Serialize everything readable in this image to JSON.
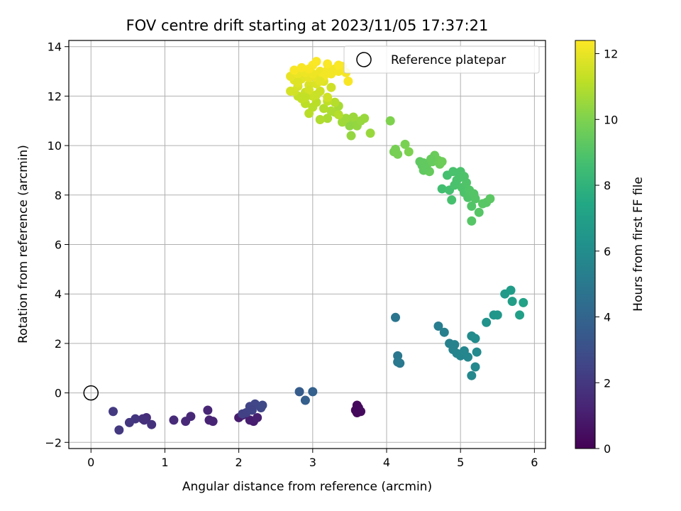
{
  "chart_data": {
    "type": "scatter",
    "title": "FOV centre drift starting at 2023/11/05 17:37:21",
    "xlabel": "Angular distance from reference (arcmin)",
    "ylabel": "Rotation from reference (arcmin)",
    "xlim": [
      -0.3,
      6.15
    ],
    "ylim": [
      -2.25,
      14.25
    ],
    "xticks": [
      0,
      1,
      2,
      3,
      4,
      5,
      6
    ],
    "yticks": [
      -2,
      0,
      2,
      4,
      6,
      8,
      10,
      12,
      14
    ],
    "grid": true,
    "legend": {
      "label": "Reference platepar",
      "placement": "top-right",
      "marker": "hollow-circle"
    },
    "reference_point": {
      "x": 0,
      "y": 0
    },
    "colorbar": {
      "label": "Hours from first FF file",
      "range": [
        0,
        12.4
      ],
      "ticks": [
        0,
        2,
        4,
        6,
        8,
        10,
        12
      ],
      "colormap": "viridis"
    },
    "series": [
      {
        "points": [
          [
            3.6,
            -0.5,
            0.3
          ],
          [
            3.62,
            -0.6,
            0.3
          ],
          [
            3.58,
            -0.7,
            0.3
          ],
          [
            3.65,
            -0.75,
            0.35
          ],
          [
            3.6,
            -0.8,
            0.3
          ],
          [
            2.05,
            -0.9,
            1.0
          ],
          [
            2.15,
            -1.1,
            1.05
          ],
          [
            2.2,
            -1.15,
            1.0
          ],
          [
            2.25,
            -1.0,
            1.1
          ],
          [
            2.0,
            -1.0,
            1.0
          ],
          [
            1.6,
            -1.1,
            1.2
          ],
          [
            1.65,
            -1.15,
            1.25
          ],
          [
            1.58,
            -0.7,
            1.3
          ],
          [
            1.35,
            -0.95,
            1.4
          ],
          [
            1.28,
            -1.15,
            1.45
          ],
          [
            1.12,
            -1.1,
            1.5
          ],
          [
            0.75,
            -1.0,
            1.6
          ],
          [
            0.7,
            -1.05,
            1.65
          ],
          [
            0.72,
            -1.1,
            1.7
          ],
          [
            0.82,
            -1.28,
            1.8
          ],
          [
            0.6,
            -1.05,
            1.9
          ],
          [
            0.52,
            -1.2,
            1.95
          ],
          [
            0.38,
            -1.5,
            2.0
          ],
          [
            0.3,
            -0.75,
            2.1
          ],
          [
            2.1,
            -0.8,
            2.4
          ],
          [
            2.15,
            -0.55,
            2.5
          ],
          [
            2.22,
            -0.45,
            2.55
          ],
          [
            2.3,
            -0.6,
            2.6
          ],
          [
            2.32,
            -0.5,
            2.7
          ],
          [
            2.18,
            -0.7,
            2.45
          ],
          [
            2.05,
            -0.85,
            2.35
          ],
          [
            2.82,
            0.05,
            3.6
          ],
          [
            2.9,
            -0.3,
            3.7
          ],
          [
            3.0,
            0.05,
            3.8
          ],
          [
            4.12,
            3.05,
            4.8
          ],
          [
            4.15,
            1.5,
            4.9
          ],
          [
            4.18,
            1.2,
            4.95
          ],
          [
            4.15,
            1.25,
            5.0
          ],
          [
            4.7,
            2.7,
            5.2
          ],
          [
            4.78,
            2.45,
            5.3
          ],
          [
            4.85,
            2.0,
            5.4
          ],
          [
            4.9,
            1.75,
            5.5
          ],
          [
            4.95,
            1.6,
            5.55
          ],
          [
            5.0,
            1.5,
            5.6
          ],
          [
            5.05,
            1.7,
            5.65
          ],
          [
            5.1,
            1.45,
            5.7
          ],
          [
            5.15,
            0.7,
            5.75
          ],
          [
            5.2,
            1.05,
            5.8
          ],
          [
            5.22,
            1.65,
            5.85
          ],
          [
            5.15,
            2.3,
            5.9
          ],
          [
            5.2,
            2.2,
            5.95
          ],
          [
            4.92,
            1.95,
            5.5
          ],
          [
            5.35,
            2.85,
            6.3
          ],
          [
            5.45,
            3.15,
            6.4
          ],
          [
            5.5,
            3.15,
            6.5
          ],
          [
            5.6,
            4.0,
            6.7
          ],
          [
            5.68,
            4.15,
            6.8
          ],
          [
            5.7,
            3.7,
            6.9
          ],
          [
            5.8,
            3.15,
            7.0
          ],
          [
            5.85,
            3.65,
            7.1
          ],
          [
            4.75,
            8.25,
            8.6
          ],
          [
            4.82,
            8.8,
            8.7
          ],
          [
            4.85,
            8.2,
            8.7
          ],
          [
            4.88,
            7.8,
            8.75
          ],
          [
            4.92,
            8.4,
            8.8
          ],
          [
            4.95,
            8.6,
            8.8
          ],
          [
            5.0,
            8.95,
            8.85
          ],
          [
            5.02,
            8.3,
            8.9
          ],
          [
            5.05,
            8.1,
            8.9
          ],
          [
            5.08,
            8.5,
            8.95
          ],
          [
            5.1,
            7.9,
            8.95
          ],
          [
            5.12,
            8.2,
            9.0
          ],
          [
            5.15,
            7.55,
            9.0
          ],
          [
            5.18,
            8.05,
            9.05
          ],
          [
            5.2,
            7.85,
            9.05
          ],
          [
            5.15,
            6.95,
            9.1
          ],
          [
            5.25,
            7.3,
            9.1
          ],
          [
            5.3,
            7.65,
            9.15
          ],
          [
            5.35,
            7.7,
            9.15
          ],
          [
            5.4,
            7.85,
            9.2
          ],
          [
            4.98,
            8.7,
            8.85
          ],
          [
            4.9,
            8.95,
            8.8
          ],
          [
            5.05,
            8.75,
            8.9
          ],
          [
            4.45,
            9.35,
            9.3
          ],
          [
            4.48,
            9.2,
            9.3
          ],
          [
            4.5,
            9.0,
            9.35
          ],
          [
            4.55,
            9.25,
            9.4
          ],
          [
            4.58,
            8.95,
            9.45
          ],
          [
            4.62,
            9.35,
            9.5
          ],
          [
            4.65,
            9.6,
            9.55
          ],
          [
            4.7,
            9.4,
            9.6
          ],
          [
            4.72,
            9.25,
            9.6
          ],
          [
            4.75,
            9.35,
            9.65
          ],
          [
            4.5,
            9.3,
            9.35
          ],
          [
            4.52,
            9.1,
            9.35
          ],
          [
            4.6,
            9.45,
            9.45
          ],
          [
            4.1,
            9.75,
            9.8
          ],
          [
            4.15,
            9.65,
            9.85
          ],
          [
            4.12,
            9.85,
            9.85
          ],
          [
            4.25,
            10.05,
            9.9
          ],
          [
            4.3,
            9.75,
            9.95
          ],
          [
            4.05,
            11.0,
            10.0
          ],
          [
            3.5,
            10.8,
            10.3
          ],
          [
            3.55,
            11.0,
            10.35
          ],
          [
            3.52,
            10.4,
            10.4
          ],
          [
            3.6,
            10.8,
            10.4
          ],
          [
            3.65,
            11.0,
            10.45
          ],
          [
            3.7,
            11.1,
            10.5
          ],
          [
            3.78,
            10.5,
            10.5
          ],
          [
            3.4,
            10.95,
            10.6
          ],
          [
            3.45,
            11.1,
            10.6
          ],
          [
            3.55,
            11.15,
            10.55
          ],
          [
            3.3,
            11.35,
            10.7
          ],
          [
            3.35,
            11.6,
            10.75
          ],
          [
            3.2,
            11.1,
            10.8
          ],
          [
            3.25,
            11.4,
            10.85
          ],
          [
            3.1,
            11.05,
            10.9
          ],
          [
            3.15,
            11.5,
            10.95
          ],
          [
            3.3,
            11.75,
            11.0
          ],
          [
            3.35,
            11.25,
            11.0
          ],
          [
            3.0,
            11.55,
            11.05
          ],
          [
            2.95,
            11.3,
            11.1
          ],
          [
            3.05,
            11.75,
            11.1
          ],
          [
            2.9,
            11.7,
            11.15
          ],
          [
            3.2,
            11.8,
            11.2
          ],
          [
            2.85,
            11.9,
            11.3
          ],
          [
            2.8,
            12.0,
            11.3
          ],
          [
            2.9,
            12.15,
            11.35
          ],
          [
            3.0,
            12.0,
            11.4
          ],
          [
            3.1,
            12.2,
            11.45
          ],
          [
            3.2,
            11.95,
            11.5
          ],
          [
            3.25,
            12.35,
            11.5
          ],
          [
            2.75,
            12.2,
            11.55
          ],
          [
            2.7,
            12.2,
            11.6
          ],
          [
            2.8,
            12.4,
            11.65
          ],
          [
            2.95,
            12.45,
            11.7
          ],
          [
            3.05,
            12.5,
            11.75
          ],
          [
            3.15,
            12.6,
            11.8
          ],
          [
            2.75,
            12.65,
            11.85
          ],
          [
            2.85,
            12.7,
            11.9
          ],
          [
            2.95,
            12.75,
            11.95
          ],
          [
            3.05,
            12.75,
            12.0
          ],
          [
            2.7,
            12.8,
            12.0
          ],
          [
            2.8,
            12.9,
            12.05
          ],
          [
            2.9,
            12.95,
            12.1
          ],
          [
            3.0,
            12.9,
            12.1
          ],
          [
            3.1,
            13.0,
            12.15
          ],
          [
            3.2,
            13.05,
            12.2
          ],
          [
            3.3,
            13.1,
            12.2
          ],
          [
            3.4,
            13.2,
            12.25
          ],
          [
            3.45,
            12.95,
            12.25
          ],
          [
            2.75,
            13.05,
            12.3
          ],
          [
            2.85,
            13.15,
            12.3
          ],
          [
            3.0,
            13.25,
            12.35
          ],
          [
            3.05,
            13.4,
            12.35
          ],
          [
            2.95,
            13.1,
            12.3
          ],
          [
            3.15,
            12.8,
            12.2
          ],
          [
            3.25,
            12.9,
            12.2
          ],
          [
            3.35,
            13.0,
            12.25
          ],
          [
            3.48,
            12.6,
            12.3
          ],
          [
            3.35,
            13.25,
            12.35
          ],
          [
            3.2,
            13.3,
            12.35
          ],
          [
            3.1,
            12.6,
            11.9
          ],
          [
            2.8,
            12.55,
            11.8
          ],
          [
            2.95,
            12.25,
            11.6
          ],
          [
            3.05,
            12.05,
            11.4
          ],
          [
            2.9,
            11.95,
            11.25
          ]
        ]
      }
    ]
  }
}
